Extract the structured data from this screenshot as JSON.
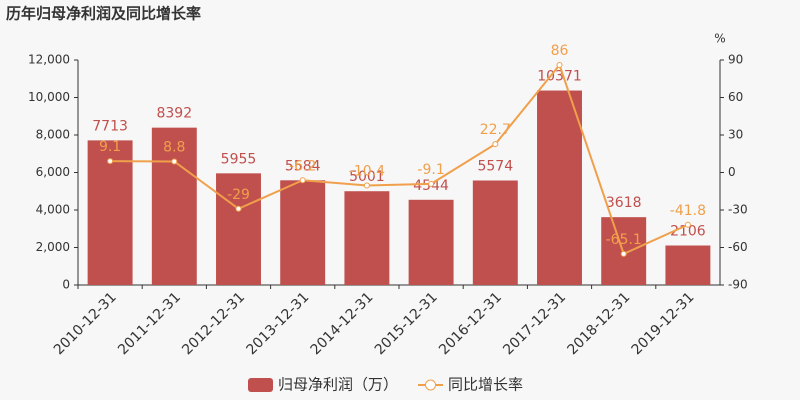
{
  "chart_data": {
    "type": "bar-line",
    "title": "历年归母净利润及同比增长率",
    "categories": [
      "2010-12-31",
      "2011-12-31",
      "2012-12-31",
      "2013-12-31",
      "2014-12-31",
      "2015-12-31",
      "2016-12-31",
      "2017-12-31",
      "2018-12-31",
      "2019-12-31"
    ],
    "series": [
      {
        "name": "归母净利润（万）",
        "type": "bar",
        "color": "#c0504d",
        "values": [
          7713,
          8392,
          5955,
          5584,
          5001,
          4544,
          5574,
          10371,
          3618,
          2106
        ]
      },
      {
        "name": "同比增长率",
        "type": "line",
        "axis": "y2",
        "color": "#f0a04b",
        "values": [
          9.1,
          8.8,
          -29,
          -6.2,
          -10.4,
          -9.1,
          22.7,
          86,
          -65.1,
          -41.8
        ]
      }
    ],
    "ylim": [
      0,
      12000
    ],
    "yticks": [
      0,
      {
        "value": 2000,
        "label": "2,000"
      },
      {
        "value": 4000,
        "label": "4,000"
      },
      {
        "value": 6000,
        "label": "6,000"
      },
      {
        "value": 8000,
        "label": "8,000"
      },
      {
        "value": 10000,
        "label": "10,000"
      },
      {
        "value": 12000,
        "label": "12,000"
      }
    ],
    "y2label": "%",
    "y2lim": [
      -90,
      90
    ],
    "y2ticks": [
      -90,
      -60,
      -30,
      0,
      30,
      60,
      90
    ],
    "grid": false,
    "legend": "bottom"
  }
}
